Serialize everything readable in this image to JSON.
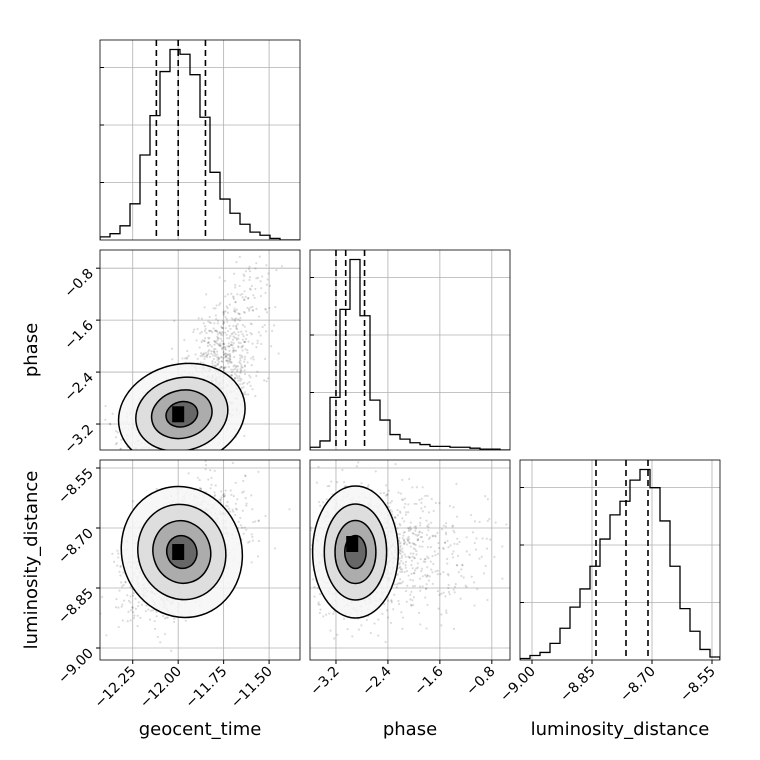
{
  "chart_data": {
    "type": "corner",
    "parameters": [
      "geocent_time",
      "phase",
      "luminosity_distance"
    ],
    "axis_labels": {
      "x": [
        "geocent_time",
        "phase",
        "luminosity_distance"
      ],
      "y": [
        "phase",
        "luminosity_distance"
      ]
    },
    "ranges": {
      "geocent_time": [
        -12.43,
        -11.33
      ],
      "phase": [
        -3.6,
        -0.52
      ],
      "luminosity_distance": [
        -9.03,
        -8.53
      ]
    },
    "ticks": {
      "geocent_time": {
        "values": [
          -12.25,
          -12.0,
          -11.75,
          -11.5
        ],
        "labels": [
          "−12.25",
          "−12.00",
          "−11.75",
          "−11.50"
        ]
      },
      "phase": {
        "values": [
          -3.2,
          -2.4,
          -1.6,
          -0.8
        ],
        "labels": [
          "−3.2",
          "−2.4",
          "−1.6",
          "−0.8"
        ]
      },
      "luminosity_distance": {
        "values": [
          -9.0,
          -8.85,
          -8.7,
          -8.55
        ],
        "labels": [
          "−9.00",
          "−8.85",
          "−8.70",
          "−8.55"
        ]
      }
    },
    "histograms": {
      "geocent_time": {
        "bins": [
          -12.43,
          -12.375,
          -12.32,
          -12.265,
          -12.21,
          -12.155,
          -12.1,
          -12.045,
          -11.99,
          -11.935,
          -11.88,
          -11.825,
          -11.77,
          -11.715,
          -11.66,
          -11.605,
          -11.55,
          -11.495,
          -11.44,
          -11.385,
          -11.33
        ],
        "counts": [
          2,
          4,
          9,
          23,
          54,
          79,
          107,
          121,
          118,
          105,
          78,
          43,
          26,
          17,
          10,
          5,
          3,
          1,
          0,
          0
        ],
        "quantiles": [
          -12.12,
          -12.0,
          -11.85
        ]
      },
      "phase": {
        "bins": [
          -3.6,
          -3.446,
          -3.292,
          -3.138,
          -2.984,
          -2.83,
          -2.676,
          -2.522,
          -2.368,
          -2.214,
          -2.06,
          -1.906,
          -1.752,
          -1.598,
          -1.444,
          -1.29,
          -1.136,
          -0.982,
          -0.828,
          -0.674,
          -0.52
        ],
        "counts": [
          3,
          10,
          58,
          155,
          210,
          148,
          55,
          33,
          17,
          12,
          8,
          6,
          4,
          4,
          3,
          3,
          2,
          1,
          1,
          0
        ],
        "quantiles": [
          -3.2,
          -3.05,
          -2.76
        ]
      },
      "luminosity_distance": {
        "bins": [
          -9.03,
          -9.005,
          -8.98,
          -8.955,
          -8.93,
          -8.905,
          -8.88,
          -8.855,
          -8.83,
          -8.805,
          -8.78,
          -8.755,
          -8.73,
          -8.705,
          -8.68,
          -8.655,
          -8.63,
          -8.605,
          -8.58,
          -8.555,
          -8.53
        ],
        "counts": [
          1,
          3,
          5,
          11,
          21,
          35,
          47,
          62,
          80,
          96,
          105,
          119,
          126,
          114,
          92,
          62,
          34,
          19,
          7,
          2
        ],
        "quantiles": [
          -8.84,
          -8.765,
          -8.71
        ]
      }
    },
    "pairs": [
      {
        "x": "geocent_time",
        "y": "phase",
        "mean": [
          -11.98,
          -3.05
        ],
        "sd": [
          0.16,
          0.35
        ],
        "corr": 0.55,
        "n_points": 1800,
        "mode_point": [
          -12.0,
          -3.05
        ],
        "contour_levels": 4
      },
      {
        "x": "geocent_time",
        "y": "luminosity_distance",
        "mean": [
          -11.98,
          -8.76
        ],
        "sd": [
          0.15,
          0.075
        ],
        "corr": 0.5,
        "n_points": 1800,
        "mode_point": [
          -12.0,
          -8.76
        ],
        "contour_levels": 4
      },
      {
        "x": "phase",
        "y": "luminosity_distance",
        "mean": [
          -2.9,
          -8.76
        ],
        "sd": [
          0.3,
          0.075
        ],
        "corr": 0.0,
        "n_points": 1800,
        "mode_point": [
          -2.95,
          -8.74
        ],
        "contour_levels": 4
      }
    ]
  }
}
